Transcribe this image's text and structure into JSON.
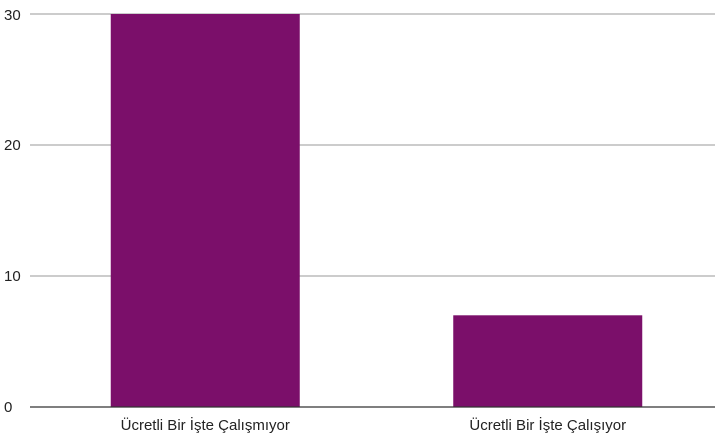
{
  "chart_data": {
    "type": "bar",
    "categories": [
      "Ücretli Bir İşte Çalışmıyor",
      "Ücretli Bir İşte Çalışıyor"
    ],
    "values": [
      30,
      7
    ],
    "ylim": [
      0,
      30
    ],
    "yticks": [
      0,
      10,
      20,
      30
    ],
    "grid": true,
    "bar_color": "#7b0f6a",
    "grid_color": "#999999",
    "axis_color": "#333333"
  }
}
